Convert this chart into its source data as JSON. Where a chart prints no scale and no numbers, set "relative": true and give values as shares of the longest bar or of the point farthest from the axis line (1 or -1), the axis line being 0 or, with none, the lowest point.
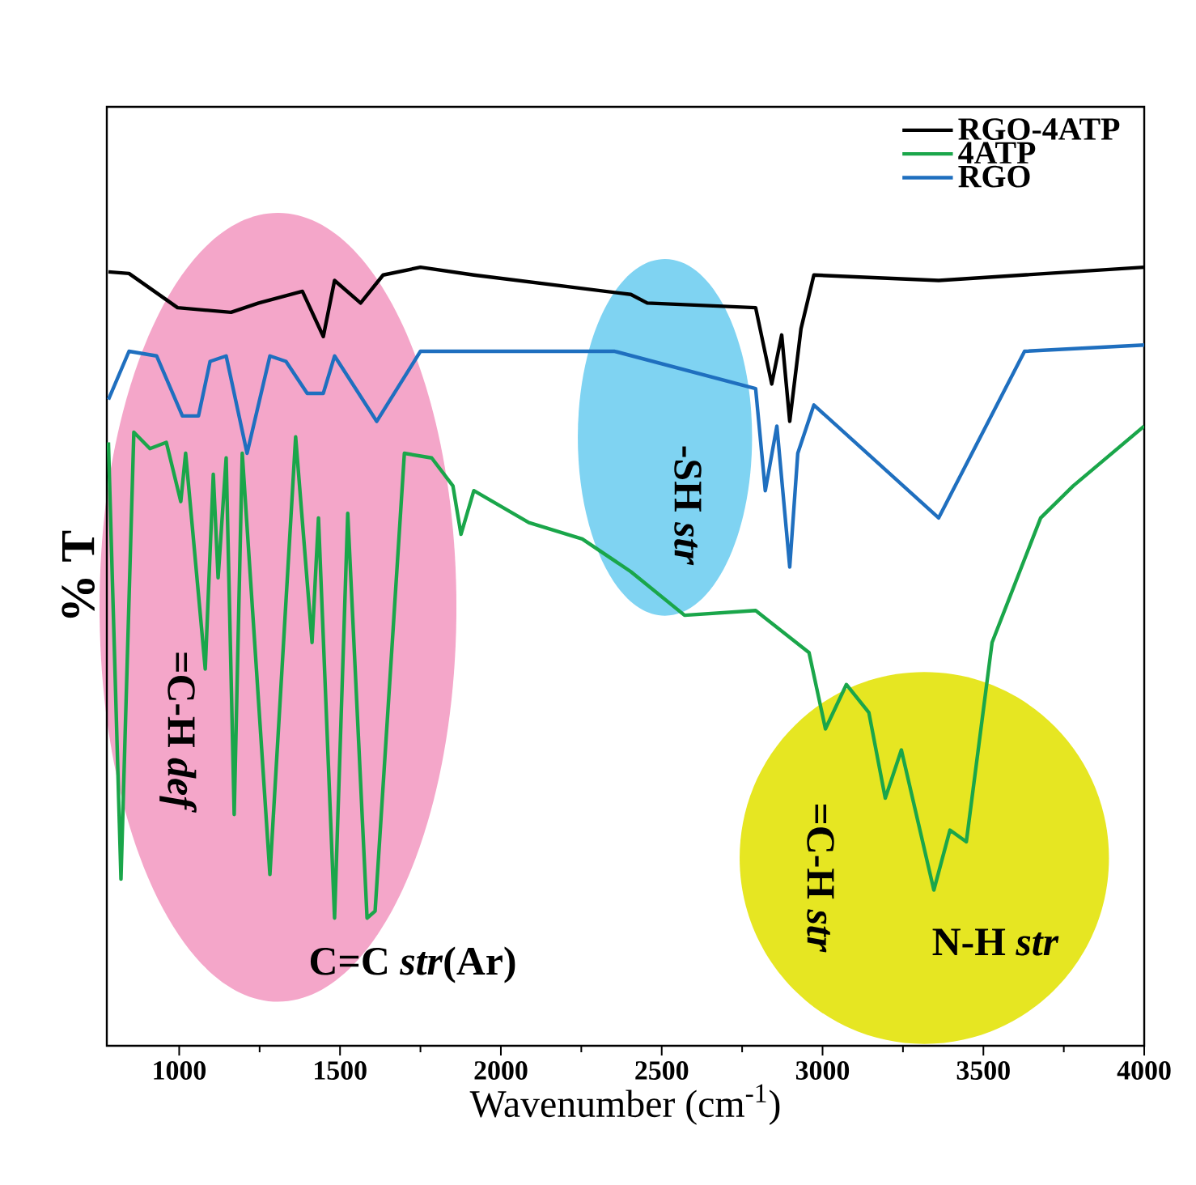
{
  "chart_data": {
    "type": "line",
    "relative": true,
    "xlabel": "Wavenumber (cm$^{-1}$)",
    "ylabel": "% T",
    "xlim": [
      775,
      4000
    ],
    "xticks": [
      1000,
      1500,
      2000,
      2500,
      3000,
      3500,
      4000
    ],
    "legend": "top right",
    "grid": false,
    "series": [
      {
        "name": "RGO-4ATP",
        "color": "#000000",
        "x": [
          780,
          844,
          995,
          1161,
          1247,
          1383,
          1448,
          1483,
          1564,
          1634,
          1750,
          1916,
          2404,
          2455,
          2792,
          2842,
          2873,
          2898,
          2933,
          2973,
          3361,
          4000
        ],
        "values": [
          0.994,
          0.992,
          0.948,
          0.942,
          0.954,
          0.969,
          0.911,
          0.983,
          0.954,
          0.99,
          1.0,
          0.99,
          0.965,
          0.954,
          0.948,
          0.85,
          0.913,
          0.802,
          0.921,
          0.99,
          0.983,
          1.0
        ]
      },
      {
        "name": "4ATP",
        "color": "#1aa64a",
        "x": [
          780,
          819,
          859,
          909,
          960,
          1005,
          1020,
          1081,
          1106,
          1121,
          1146,
          1171,
          1196,
          1282,
          1362,
          1413,
          1433,
          1483,
          1524,
          1584,
          1609,
          1700,
          1785,
          1851,
          1876,
          1916,
          2087,
          2253,
          2404,
          2571,
          2792,
          2958,
          3009,
          3074,
          3144,
          3195,
          3245,
          3346,
          3396,
          3447,
          3527,
          3678,
          3779,
          4000
        ],
        "values": [
          0.775,
          0.214,
          0.788,
          0.767,
          0.775,
          0.699,
          0.761,
          0.484,
          0.734,
          0.601,
          0.755,
          0.297,
          0.761,
          0.22,
          0.782,
          0.518,
          0.678,
          0.164,
          0.684,
          0.164,
          0.173,
          0.761,
          0.755,
          0.719,
          0.657,
          0.713,
          0.672,
          0.651,
          0.609,
          0.553,
          0.559,
          0.505,
          0.407,
          0.464,
          0.428,
          0.318,
          0.38,
          0.2,
          0.277,
          0.262,
          0.518,
          0.678,
          0.719,
          0.796
        ]
      },
      {
        "name": "RGO",
        "color": "#1f6fbf",
        "x": [
          780,
          844,
          930,
          1010,
          1060,
          1096,
          1146,
          1211,
          1282,
          1332,
          1398,
          1448,
          1483,
          1614,
          1750,
          2354,
          2792,
          2822,
          2858,
          2898,
          2923,
          2973,
          3361,
          3628,
          4000
        ],
        "values": [
          0.83,
          0.892,
          0.886,
          0.809,
          0.809,
          0.879,
          0.886,
          0.761,
          0.886,
          0.879,
          0.838,
          0.838,
          0.886,
          0.802,
          0.892,
          0.892,
          0.844,
          0.713,
          0.796,
          0.615,
          0.761,
          0.823,
          0.678,
          0.892,
          0.9
        ]
      }
    ],
    "annotations": [
      "=C-H *def*",
      "-SH *str*",
      "=C-H *str*",
      "C=C *str*(Ar)",
      "N-H *str*"
    ]
  }
}
